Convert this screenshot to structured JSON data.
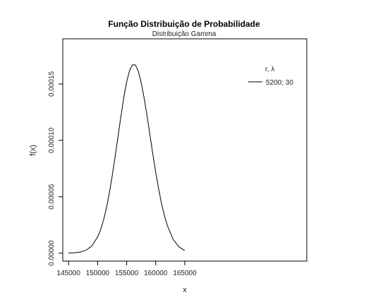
{
  "chart_data": {
    "type": "line",
    "title": "Função Distribuição de Probabilidade",
    "subtitle": "Distribuição Gamma",
    "xlabel": "x",
    "ylabel": "f(x)",
    "xlim": [
      144000,
      186000
    ],
    "ylim": [
      -7e-06,
      0.00019
    ],
    "x_ticks": [
      145000,
      150000,
      155000,
      160000,
      165000
    ],
    "x_tick_labels": [
      "145000",
      "150000",
      "155000",
      "160000",
      "165000"
    ],
    "y_ticks": [
      0,
      5e-05,
      0.0001,
      0.00015
    ],
    "y_tick_labels": [
      "0.00000",
      "0.00005",
      "0.00010",
      "0.00015"
    ],
    "legend": {
      "title": "r, λ",
      "entries": [
        "5200; 30"
      ],
      "placement": "top-right"
    },
    "series": [
      {
        "name": "5200; 30",
        "x": [
          145000,
          146000,
          147000,
          148000,
          149000,
          150000,
          150500,
          151000,
          151500,
          152000,
          152500,
          153000,
          153500,
          154000,
          154500,
          155000,
          155500,
          156000,
          156500,
          157000,
          157500,
          158000,
          158500,
          159000,
          159500,
          160000,
          160500,
          161000,
          161500,
          162000,
          163000,
          164000,
          165000
        ],
        "y": [
          1e-07,
          3e-07,
          1e-06,
          2.6e-06,
          6.3e-06,
          1.43e-05,
          2.06e-05,
          2.9e-05,
          3.97e-05,
          5.27e-05,
          6.8e-05,
          8.51e-05,
          0.0001031,
          0.0001211,
          0.0001378,
          0.0001518,
          0.0001618,
          0.000167,
          0.0001668,
          0.0001613,
          0.0001513,
          0.0001377,
          0.0001218,
          0.0001049,
          8.79e-05,
          7.18e-05,
          5.71e-05,
          4.42e-05,
          3.33e-05,
          2.45e-05,
          1.22e-05,
          5.6e-06,
          2.3e-06
        ]
      }
    ]
  }
}
